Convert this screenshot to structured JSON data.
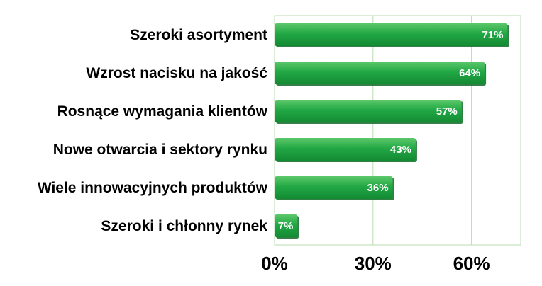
{
  "chart_data": {
    "type": "bar",
    "orientation": "horizontal",
    "categories": [
      "Szeroki asortyment",
      "Wzrost nacisku na jakość",
      "Rosnące wymagania klientów",
      "Nowe otwarcia i sektory rynku",
      "Wiele innowacyjnych produktów",
      "Szeroki i chłonny rynek"
    ],
    "values": [
      71,
      64,
      57,
      43,
      36,
      7
    ],
    "value_labels": [
      "71%",
      "64%",
      "57%",
      "43%",
      "36%",
      "7%"
    ],
    "xlim": [
      0,
      75
    ],
    "xticks": [
      0,
      30,
      60
    ],
    "xtick_labels": [
      "0%",
      "30%",
      "60%"
    ],
    "grid": "vertical",
    "bar_color": "#1fa043",
    "grid_color": "#b8dcb0"
  }
}
